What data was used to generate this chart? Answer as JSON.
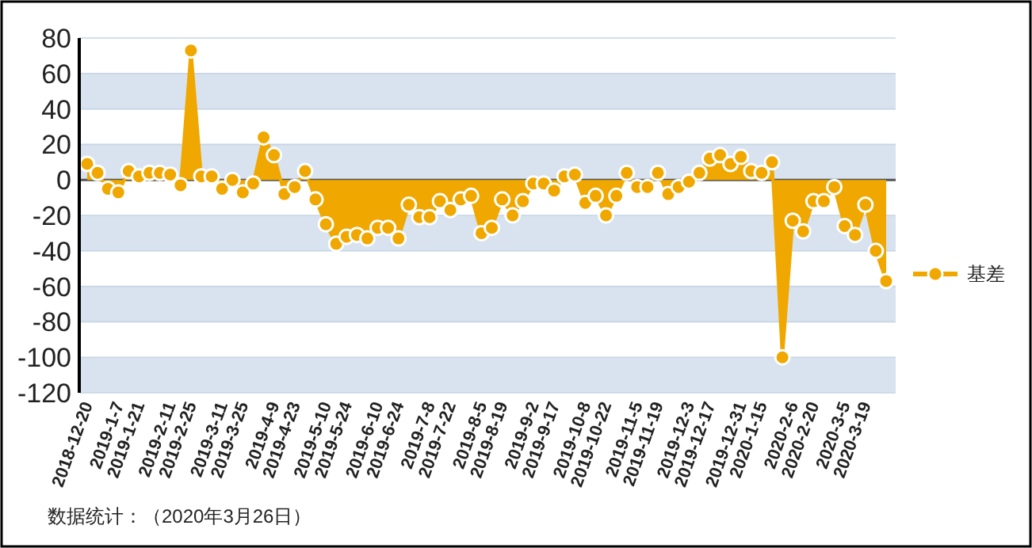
{
  "chart_data": {
    "type": "area",
    "categories": [
      "2018-12-20",
      null,
      null,
      "2019-1-7",
      null,
      "2019-1-21",
      null,
      null,
      "2019-2-11",
      null,
      "2019-2-25",
      null,
      null,
      "2019-3-11",
      null,
      "2019-3-25",
      null,
      null,
      "2019-4-9",
      null,
      "2019-4-23",
      null,
      null,
      "2019-5-10",
      null,
      "2019-5-24",
      null,
      null,
      "2019-6-10",
      null,
      "2019-6-24",
      null,
      null,
      "2019-7-8",
      null,
      "2019-7-22",
      null,
      null,
      "2019-8-5",
      null,
      "2019-8-19",
      null,
      null,
      "2019-9-2",
      null,
      "2019-9-17",
      null,
      null,
      "2019-10-8",
      null,
      "2019-10-22",
      null,
      null,
      "2019-11-5",
      null,
      "2019-11-19",
      null,
      null,
      "2019-12-3",
      null,
      "2019-12-17",
      null,
      null,
      "2019-12-31",
      null,
      "2020-1-15",
      null,
      null,
      "2020-2-6",
      null,
      "2020-2-20",
      null,
      null,
      "2020-3-5",
      null,
      "2020-3-19",
      null,
      null
    ],
    "series": [
      {
        "name": "基差",
        "color": "#f0a800",
        "values": [
          9,
          4,
          -5,
          -7,
          5,
          2,
          4,
          4,
          3,
          -3,
          73,
          2,
          2,
          -5,
          0,
          -7,
          -2,
          24,
          14,
          -8,
          -4,
          5,
          -11,
          -25,
          -36,
          -32,
          -31,
          -33,
          -27,
          -27,
          -33,
          -14,
          -21,
          -21,
          -12,
          -17,
          -11,
          -9,
          -30,
          -27,
          -11,
          -20,
          -12,
          -2,
          -2,
          -6,
          2,
          3,
          -13,
          -9,
          -20,
          -9,
          4,
          -4,
          -4,
          4,
          -8,
          -4,
          -1,
          4,
          12,
          14,
          9,
          13,
          5,
          4,
          10,
          -100,
          -23,
          -29,
          -12,
          -12,
          -4,
          -26,
          -31,
          -14,
          -40,
          -57
        ]
      }
    ],
    "ylim": [
      -120,
      80
    ],
    "yticks": [
      -120,
      -100,
      -80,
      -60,
      -40,
      -20,
      0,
      20,
      40,
      60,
      80
    ],
    "grid": "y",
    "marker": "circle",
    "legend": "right",
    "ref_lines": [
      {
        "axis": "y",
        "value": 0,
        "color": "#555555"
      }
    ],
    "annotations": [
      "数据统计：（2020年3月26日）"
    ]
  }
}
